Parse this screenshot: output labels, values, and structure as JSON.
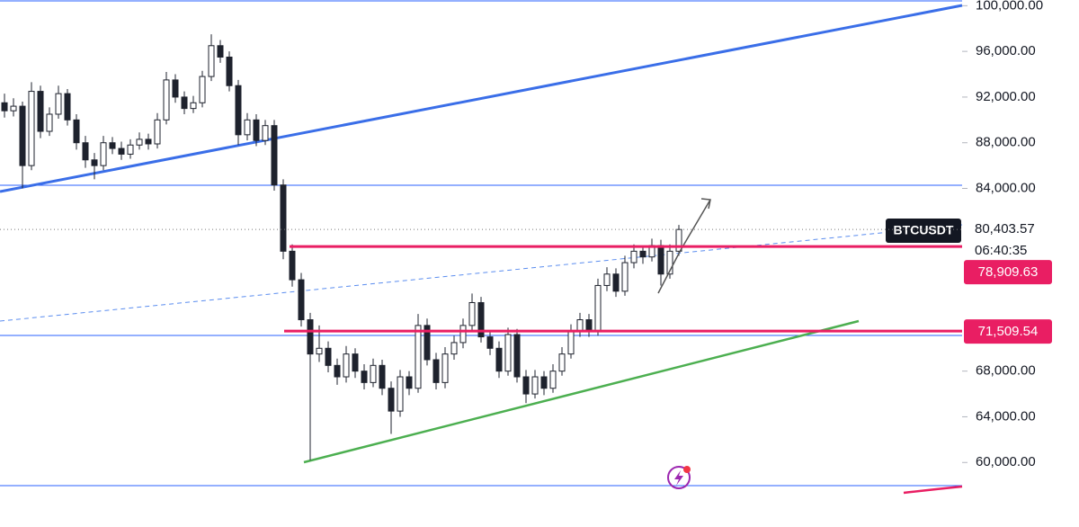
{
  "chart_data": {
    "type": "candlestick",
    "symbol": "BTCUSDT",
    "countdown": "06:40:35",
    "ylim": [
      57500,
      100500
    ],
    "yticks": [
      {
        "value": 100000,
        "label": "100,000.00"
      },
      {
        "value": 96000,
        "label": "96,000.00"
      },
      {
        "value": 92000,
        "label": "92,000.00"
      },
      {
        "value": 88000,
        "label": "88,000.00"
      },
      {
        "value": 84000,
        "label": "84,000.00"
      },
      {
        "value": 68000,
        "label": "68,000.00"
      },
      {
        "value": 64000,
        "label": "64,000.00"
      },
      {
        "value": 60000,
        "label": "60,000.00"
      }
    ],
    "up_color": "#ffffff",
    "down_color": "#1e222d",
    "last_price": {
      "value": 80403.57,
      "label": "80,403.57"
    },
    "levels": [
      {
        "value": 78909.63,
        "label": "78,909.63",
        "color": "#e91e63"
      },
      {
        "value": 71509.54,
        "label": "71,509.54",
        "color": "#e91e63"
      }
    ],
    "candles": [
      [
        91500,
        92300,
        90200,
        90800
      ],
      [
        90800,
        91900,
        90300,
        91200
      ],
      [
        91200,
        91600,
        84000,
        86000
      ],
      [
        86000,
        93300,
        85600,
        92500
      ],
      [
        92500,
        93000,
        88400,
        89000
      ],
      [
        89000,
        91100,
        88600,
        90500
      ],
      [
        90500,
        93000,
        90100,
        92300
      ],
      [
        92300,
        92700,
        89500,
        90000
      ],
      [
        90000,
        90500,
        87400,
        88000
      ],
      [
        88000,
        88600,
        85800,
        86500
      ],
      [
        86500,
        87100,
        84800,
        86000
      ],
      [
        86000,
        88600,
        85600,
        88000
      ],
      [
        88000,
        88500,
        87000,
        87500
      ],
      [
        87500,
        88100,
        86500,
        87000
      ],
      [
        87000,
        88300,
        86600,
        87800
      ],
      [
        87800,
        88900,
        87400,
        88300
      ],
      [
        88300,
        88800,
        87400,
        87900
      ],
      [
        87900,
        90600,
        87500,
        90000
      ],
      [
        90000,
        94200,
        89600,
        93500
      ],
      [
        93500,
        94000,
        91500,
        92000
      ],
      [
        92000,
        92500,
        90500,
        91000
      ],
      [
        91000,
        92100,
        90600,
        91500
      ],
      [
        91500,
        94300,
        91100,
        93800
      ],
      [
        93800,
        97500,
        93400,
        96500
      ],
      [
        96500,
        97000,
        95000,
        95500
      ],
      [
        95500,
        96000,
        92500,
        93000
      ],
      [
        93000,
        93500,
        87800,
        88700
      ],
      [
        88700,
        90600,
        88200,
        90000
      ],
      [
        90000,
        90500,
        87700,
        88200
      ],
      [
        88200,
        90000,
        87800,
        89500
      ],
      [
        89500,
        90000,
        83800,
        84300
      ],
      [
        84300,
        84800,
        77800,
        78500
      ],
      [
        78500,
        79100,
        75400,
        76000
      ],
      [
        76000,
        76600,
        71900,
        72500
      ],
      [
        72500,
        73100,
        60200,
        69500
      ],
      [
        69500,
        72000,
        68800,
        70000
      ],
      [
        70000,
        70600,
        67900,
        68500
      ],
      [
        68500,
        69100,
        66800,
        67500
      ],
      [
        67500,
        70200,
        67000,
        69500
      ],
      [
        69500,
        70000,
        67400,
        68000
      ],
      [
        68000,
        68600,
        66400,
        67000
      ],
      [
        67000,
        69100,
        66600,
        68500
      ],
      [
        68500,
        69000,
        65900,
        66500
      ],
      [
        66500,
        67100,
        62500,
        64500
      ],
      [
        64500,
        68100,
        64000,
        67500
      ],
      [
        67500,
        68000,
        65900,
        66500
      ],
      [
        66500,
        73000,
        66100,
        72000
      ],
      [
        72000,
        72600,
        68500,
        69000
      ],
      [
        69000,
        69600,
        66400,
        67000
      ],
      [
        67000,
        70100,
        66500,
        69500
      ],
      [
        69500,
        71100,
        69000,
        70500
      ],
      [
        70500,
        72600,
        70000,
        72000
      ],
      [
        72000,
        74800,
        71600,
        74000
      ],
      [
        74000,
        74500,
        70500,
        71000
      ],
      [
        71000,
        71600,
        69400,
        70000
      ],
      [
        70000,
        70600,
        67400,
        68000
      ],
      [
        68000,
        71800,
        67600,
        71200
      ],
      [
        71200,
        71700,
        67000,
        67500
      ],
      [
        67500,
        68100,
        65200,
        66000
      ],
      [
        66000,
        68100,
        65600,
        67500
      ],
      [
        67500,
        68000,
        65900,
        66500
      ],
      [
        66500,
        68600,
        66100,
        68000
      ],
      [
        68000,
        70100,
        67600,
        69500
      ],
      [
        69500,
        72100,
        69100,
        71500
      ],
      [
        71500,
        73100,
        71000,
        72500
      ],
      [
        72500,
        73000,
        71000,
        71500
      ],
      [
        71500,
        76100,
        71100,
        75500
      ],
      [
        75500,
        77100,
        75000,
        76500
      ],
      [
        76500,
        77000,
        74500,
        75000
      ],
      [
        75000,
        78100,
        74600,
        77500
      ],
      [
        77500,
        79100,
        77000,
        78500
      ],
      [
        78500,
        79000,
        77400,
        78000
      ],
      [
        78000,
        79600,
        77600,
        79000
      ],
      [
        79000,
        79500,
        75500,
        76500
      ],
      [
        76500,
        79100,
        76100,
        78500
      ],
      [
        78500,
        80800,
        78100,
        80403.57
      ]
    ]
  }
}
